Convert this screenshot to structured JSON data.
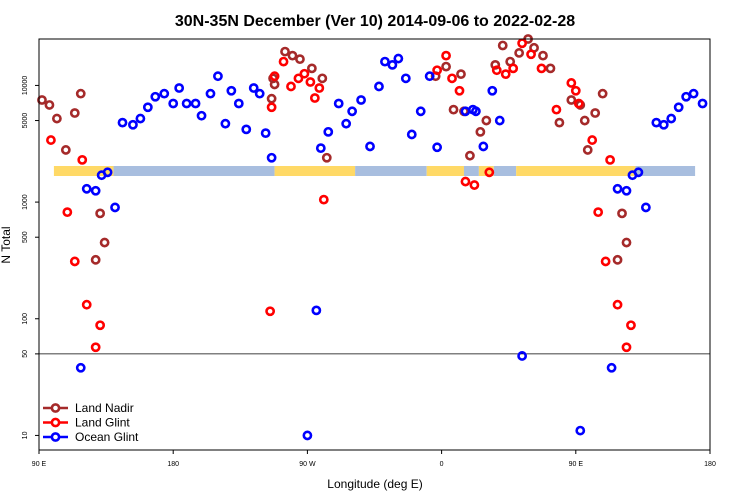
{
  "chart_data": {
    "type": "scatter",
    "title": "30N-35N December (Ver 10)   2014-09-06 to 2022-02-28",
    "xlabel": "Longitude (deg E)",
    "ylabel": "N Total",
    "y_scale": "log",
    "xlim": [
      90,
      540
    ],
    "ylim": [
      7.5,
      25000
    ],
    "x_ticks": [
      {
        "value": 90,
        "label": "90 E"
      },
      {
        "value": 180,
        "label": "180"
      },
      {
        "value": 270,
        "label": "90 W"
      },
      {
        "value": 360,
        "label": "0"
      },
      {
        "value": 450,
        "label": "90 E"
      },
      {
        "value": 540,
        "label": "180"
      }
    ],
    "y_ticks": [
      {
        "value": 10,
        "label": "10"
      },
      {
        "value": 50,
        "label": "50"
      },
      {
        "value": 100,
        "label": "100"
      },
      {
        "value": 500,
        "label": "500"
      },
      {
        "value": 1000,
        "label": "1000"
      },
      {
        "value": 5000,
        "label": "5000"
      },
      {
        "value": 10000,
        "label": "10000"
      }
    ],
    "reference_line": 50,
    "legend_position": "bottom-left",
    "land_band": [
      {
        "x": [
          100,
          140
        ],
        "type": "land"
      },
      {
        "x": [
          140,
          248
        ],
        "type": "ocean"
      },
      {
        "x": [
          248,
          302
        ],
        "type": "land"
      },
      {
        "x": [
          302,
          350
        ],
        "type": "ocean"
      },
      {
        "x": [
          350,
          375
        ],
        "type": "land"
      },
      {
        "x": [
          375,
          385
        ],
        "type": "ocean"
      },
      {
        "x": [
          385,
          395
        ],
        "type": "land"
      },
      {
        "x": [
          395,
          410
        ],
        "type": "ocean"
      },
      {
        "x": [
          410,
          490
        ],
        "type": "land"
      },
      {
        "x": [
          490,
          530
        ],
        "type": "ocean"
      }
    ],
    "series": [
      {
        "name": "Land Nadir",
        "color": "#a52a2a",
        "points": [
          [
            92,
            7500
          ],
          [
            97,
            6800
          ],
          [
            102,
            5200
          ],
          [
            108,
            2800
          ],
          [
            114,
            5800
          ],
          [
            118,
            8500
          ],
          [
            128,
            320
          ],
          [
            131,
            800
          ],
          [
            134,
            450
          ],
          [
            246,
            7700
          ],
          [
            248,
            10200
          ],
          [
            255,
            19500
          ],
          [
            260,
            18000
          ],
          [
            265,
            16800
          ],
          [
            273,
            14000
          ],
          [
            280,
            11500
          ],
          [
            283,
            2400
          ],
          [
            247,
            11500
          ],
          [
            356,
            12000
          ],
          [
            363,
            14500
          ],
          [
            368,
            6200
          ],
          [
            373,
            12500
          ],
          [
            375,
            6000
          ],
          [
            379,
            2500
          ],
          [
            386,
            4000
          ],
          [
            390,
            5000
          ],
          [
            396,
            15000
          ],
          [
            401,
            22000
          ],
          [
            406,
            16000
          ],
          [
            412,
            19000
          ],
          [
            418,
            25000
          ],
          [
            422,
            21000
          ],
          [
            428,
            18000
          ],
          [
            433,
            14000
          ],
          [
            439,
            4800
          ],
          [
            447,
            7500
          ],
          [
            453,
            6800
          ],
          [
            456,
            5000
          ],
          [
            463,
            5800
          ],
          [
            468,
            8500
          ],
          [
            478,
            320
          ],
          [
            481,
            800
          ],
          [
            484,
            450
          ],
          [
            458,
            2800
          ]
        ]
      },
      {
        "name": "Land Glint",
        "color": "#ff0000",
        "points": [
          [
            98,
            3400
          ],
          [
            109,
            820
          ],
          [
            114,
            310
          ],
          [
            119,
            2300
          ],
          [
            122,
            132
          ],
          [
            128,
            57
          ],
          [
            131,
            88
          ],
          [
            248,
            12000
          ],
          [
            254,
            16000
          ],
          [
            259,
            9800
          ],
          [
            264,
            11500
          ],
          [
            268,
            12600
          ],
          [
            275,
            7800
          ],
          [
            278,
            9500
          ],
          [
            281,
            1050
          ],
          [
            245,
            116
          ],
          [
            246,
            6500
          ],
          [
            272,
            10700
          ],
          [
            357,
            13500
          ],
          [
            363,
            18000
          ],
          [
            367,
            11500
          ],
          [
            372,
            9000
          ],
          [
            376,
            1500
          ],
          [
            382,
            1400
          ],
          [
            392,
            1800
          ],
          [
            397,
            13500
          ],
          [
            403,
            12500
          ],
          [
            408,
            14000
          ],
          [
            414,
            23000
          ],
          [
            420,
            18500
          ],
          [
            427,
            14000
          ],
          [
            437,
            6200
          ],
          [
            447,
            10500
          ],
          [
            452,
            7000
          ],
          [
            461,
            3400
          ],
          [
            465,
            820
          ],
          [
            470,
            310
          ],
          [
            473,
            2300
          ],
          [
            478,
            132
          ],
          [
            484,
            57
          ],
          [
            487,
            88
          ],
          [
            450,
            9000
          ]
        ]
      },
      {
        "name": "Ocean Glint",
        "color": "#0000ff",
        "points": [
          [
            118,
            38
          ],
          [
            122,
            1300
          ],
          [
            128,
            1250
          ],
          [
            132,
            1700
          ],
          [
            136,
            1800
          ],
          [
            141,
            900
          ],
          [
            146,
            4800
          ],
          [
            153,
            4600
          ],
          [
            158,
            5200
          ],
          [
            163,
            6500
          ],
          [
            168,
            8000
          ],
          [
            174,
            8500
          ],
          [
            180,
            7000
          ],
          [
            184,
            9500
          ],
          [
            189,
            7000
          ],
          [
            195,
            7000
          ],
          [
            199,
            5500
          ],
          [
            205,
            8500
          ],
          [
            210,
            12000
          ],
          [
            215,
            4700
          ],
          [
            219,
            9000
          ],
          [
            224,
            7000
          ],
          [
            229,
            4200
          ],
          [
            234,
            9500
          ],
          [
            238,
            8500
          ],
          [
            242,
            3900
          ],
          [
            246,
            2400
          ],
          [
            270,
            10
          ],
          [
            276,
            118
          ],
          [
            279,
            2900
          ],
          [
            284,
            4000
          ],
          [
            291,
            7000
          ],
          [
            296,
            4700
          ],
          [
            300,
            6000
          ],
          [
            306,
            7500
          ],
          [
            312,
            3000
          ],
          [
            318,
            9800
          ],
          [
            322,
            16000
          ],
          [
            327,
            15000
          ],
          [
            331,
            17000
          ],
          [
            336,
            11500
          ],
          [
            340,
            3800
          ],
          [
            346,
            6000
          ],
          [
            352,
            12000
          ],
          [
            357,
            2950
          ],
          [
            383,
            6000
          ],
          [
            388,
            3000
          ],
          [
            394,
            9000
          ],
          [
            399,
            5000
          ],
          [
            414,
            48
          ],
          [
            453,
            11
          ],
          [
            474,
            38
          ],
          [
            478,
            1300
          ],
          [
            484,
            1250
          ],
          [
            488,
            1700
          ],
          [
            492,
            1800
          ],
          [
            497,
            900
          ],
          [
            504,
            4800
          ],
          [
            509,
            4600
          ],
          [
            514,
            5200
          ],
          [
            519,
            6500
          ],
          [
            524,
            8000
          ],
          [
            529,
            8500
          ],
          [
            535,
            7000
          ],
          [
            376,
            6000
          ],
          [
            381,
            6200
          ]
        ]
      }
    ]
  }
}
